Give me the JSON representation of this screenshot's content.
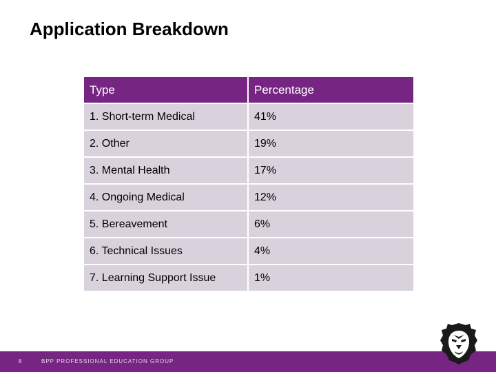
{
  "slide": {
    "title": "Application Breakdown",
    "page_number": "8",
    "footer_text": "BPP PROFESSIONAL EDUCATION GROUP"
  },
  "table": {
    "headers": [
      "Type",
      "Percentage"
    ],
    "rows": [
      [
        "1. Short-term Medical",
        "41%"
      ],
      [
        "2. Other",
        "19%"
      ],
      [
        "3. Mental Health",
        "17%"
      ],
      [
        "4. Ongoing Medical",
        "12%"
      ],
      [
        "5. Bereavement",
        "6%"
      ],
      [
        "6. Technical Issues",
        "4%"
      ],
      [
        "7. Learning Support Issue",
        "1%"
      ]
    ]
  },
  "colors": {
    "brand_purple": "#772583",
    "row_fill": "#d9d2dc"
  },
  "icons": {
    "logo": "lion-head-logo-icon"
  }
}
